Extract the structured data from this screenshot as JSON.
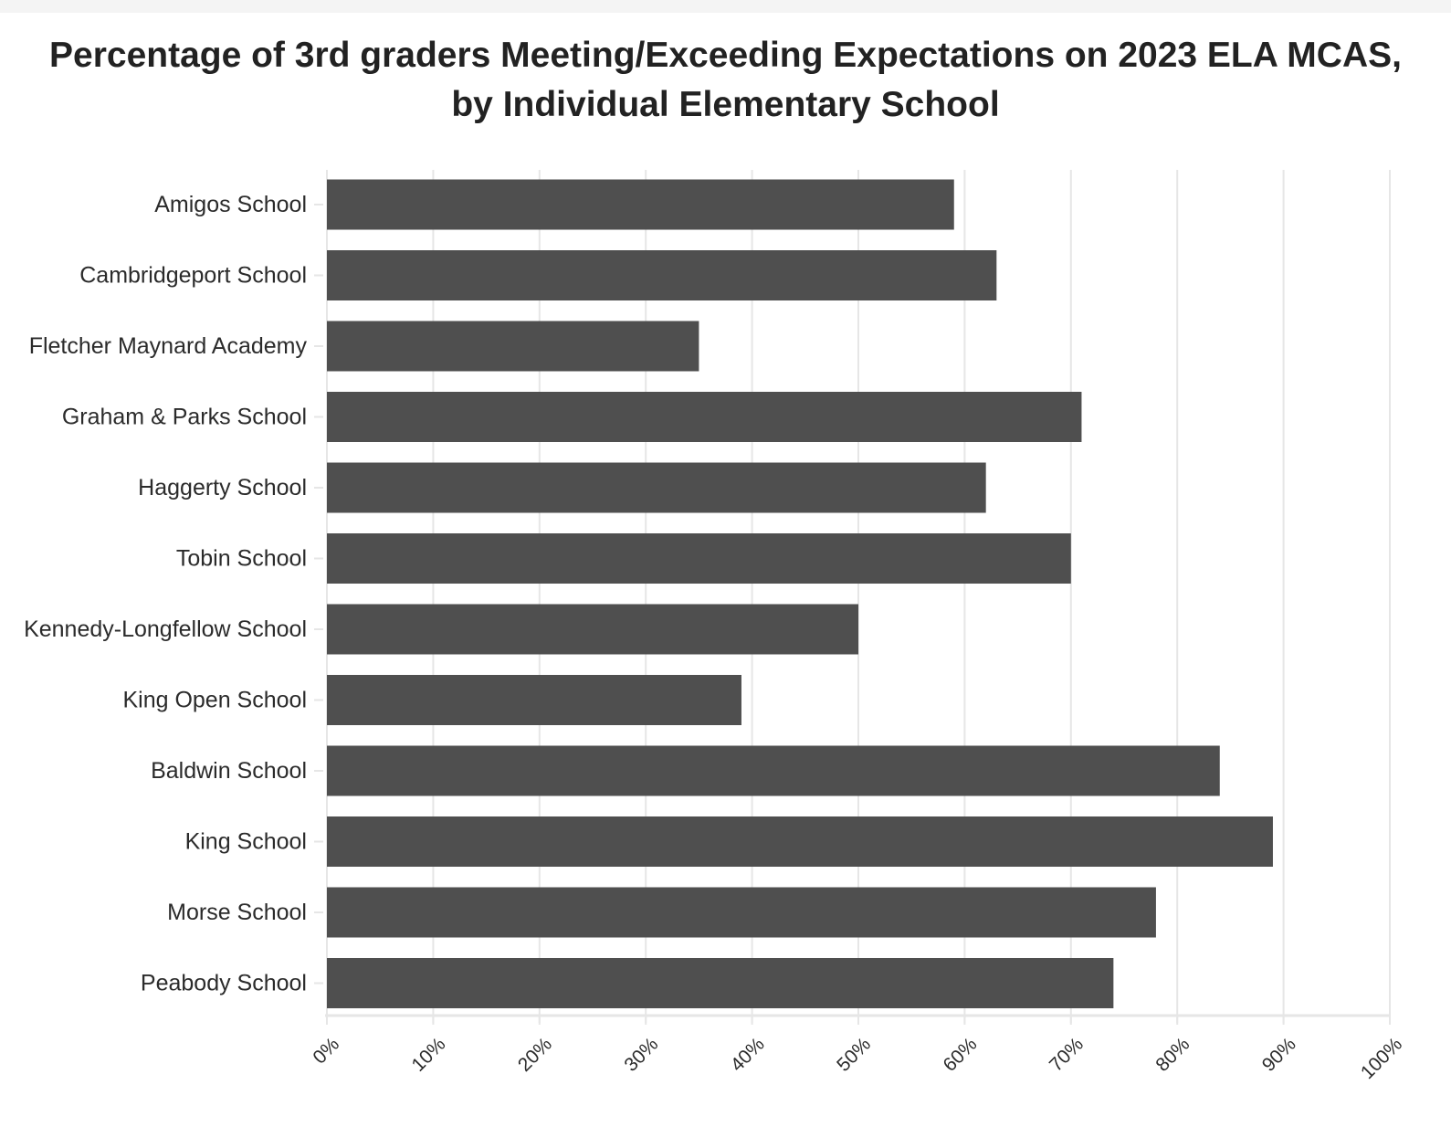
{
  "chart_data": {
    "type": "bar",
    "orientation": "horizontal",
    "title_lines": [
      "Percentage of 3rd graders Meeting/Exceeding Expectations on 2023 ELA MCAS,",
      "by Individual Elementary School"
    ],
    "categories": [
      "Amigos School",
      "Cambridgeport School",
      "Fletcher Maynard Academy",
      "Graham & Parks School",
      "Haggerty School",
      "Tobin School",
      "Kennedy-Longfellow School",
      "King Open School",
      "Baldwin School",
      "King School",
      "Morse School",
      "Peabody School"
    ],
    "values": [
      59,
      63,
      35,
      71,
      62,
      70,
      50,
      39,
      84,
      89,
      78,
      74
    ],
    "xlim": [
      0,
      100
    ],
    "x_ticks": [
      0,
      10,
      20,
      30,
      40,
      50,
      60,
      70,
      80,
      90,
      100
    ],
    "x_tick_labels": [
      "0%",
      "10%",
      "20%",
      "30%",
      "40%",
      "50%",
      "60%",
      "70%",
      "80%",
      "90%",
      "100%"
    ],
    "xlabel": "",
    "ylabel": "",
    "grid": true,
    "legend": "none",
    "bar_color": "#4f4f4f",
    "grid_color": "#e6e6e6"
  }
}
